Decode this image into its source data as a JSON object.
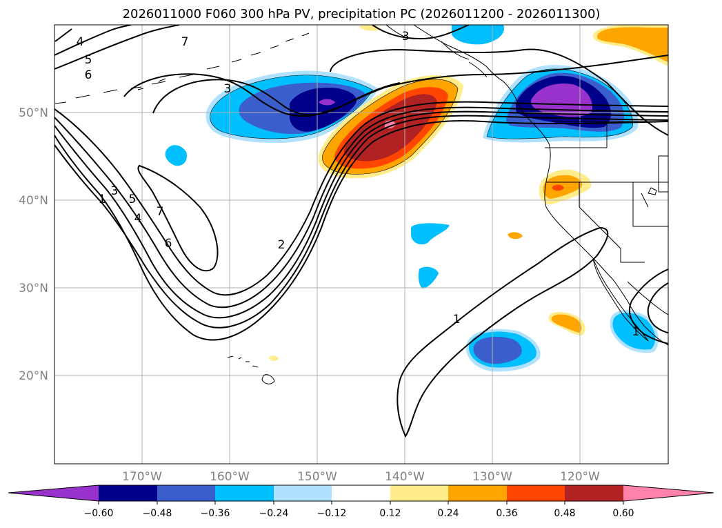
{
  "title": "2026011000 F060 300 hPa PV, precipitation PC (2026011200 - 2026011300)",
  "map": {
    "lon_labels": [
      "170°W",
      "160°W",
      "150°W",
      "140°W",
      "130°W",
      "120°W"
    ],
    "lat_labels": [
      "50°N",
      "40°N",
      "30°N",
      "20°N"
    ],
    "contour_labels": [
      "1",
      "2",
      "3",
      "3",
      "3",
      "4",
      "4",
      "5",
      "5",
      "6",
      "6",
      "7",
      "7",
      "1",
      "1"
    ]
  },
  "colorbar": {
    "ticks": [
      "−0.60",
      "−0.48",
      "−0.36",
      "−0.24",
      "−0.12",
      "0.12",
      "0.24",
      "0.36",
      "0.48",
      "0.60"
    ],
    "colors": {
      "under": "#9932cc",
      "c1": "#00008b",
      "c2": "#3a5fcd",
      "c3": "#00bfff",
      "c4": "#b0e2ff",
      "c5": "#ffffff",
      "c6": "#ffec8b",
      "c7": "#ffa500",
      "c8": "#ff4500",
      "c9": "#b22222",
      "over": "#ff82ab"
    }
  }
}
